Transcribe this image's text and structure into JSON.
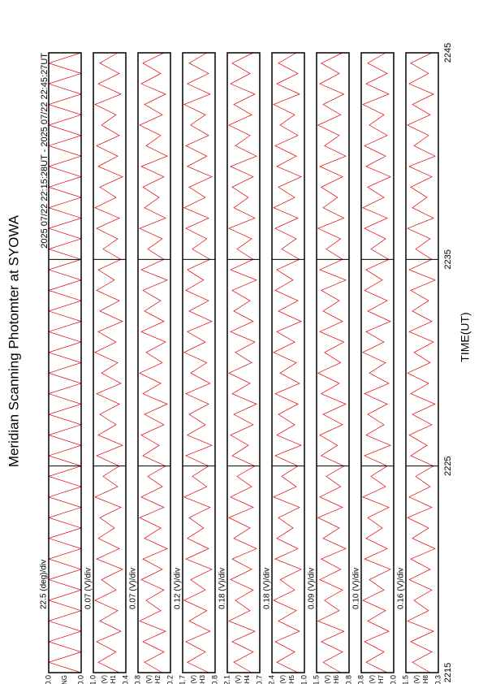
{
  "title": "Meridian Scanning Photomter at SYOWA",
  "time_range": "2025 07/22 22:15:28UT - 2025 07/22 22:45:27UT",
  "time_axis": {
    "label": "TIME(UT)",
    "xlim": [
      2215,
      2245
    ],
    "xticks": [
      2215,
      2225,
      2235,
      2245
    ],
    "x": [
      2215,
      2215.5,
      2216,
      2216.5,
      2217,
      2217.5,
      2218,
      2218.5,
      2219,
      2219.5,
      2220,
      2220.5,
      2221,
      2221.5,
      2222,
      2222.5,
      2223,
      2223.5,
      2224,
      2224.5,
      2225,
      2225.5,
      2226,
      2226.5,
      2227,
      2227.5,
      2228,
      2228.5,
      2229,
      2229.5,
      2230,
      2230.5,
      2231,
      2231.5,
      2232,
      2232.5,
      2233,
      2233.5,
      2234,
      2234.5,
      2235,
      2235.5,
      2236,
      2236.5,
      2237,
      2237.5,
      2238,
      2238.5,
      2239,
      2239.5,
      2240,
      2240.5,
      2241,
      2241.5,
      2242,
      2242.5,
      2243,
      2243.5,
      2244,
      2244.5,
      2245
    ]
  },
  "chart_data": [
    {
      "type": "line",
      "scale": "22.5 (deg)/div",
      "channel": "ANG",
      "ylim": [
        0,
        180
      ],
      "yticks": [
        {
          "value": 180,
          "label": "180.0"
        },
        {
          "value": 0,
          "label": "0.0"
        }
      ],
      "series": [
        {
          "color": "#e00000",
          "values": [
            0,
            180,
            0,
            180,
            0,
            180,
            0,
            180,
            0,
            180,
            0,
            180,
            0,
            180,
            0,
            180,
            0,
            180,
            0,
            180,
            0,
            180,
            0,
            180,
            0,
            180,
            0,
            180,
            0,
            180,
            0,
            180,
            0,
            180,
            0,
            180,
            0,
            180,
            0,
            180,
            0,
            180,
            0,
            180,
            0,
            180,
            0,
            180,
            0,
            180,
            0,
            180,
            0,
            180,
            0,
            180,
            0,
            180,
            0,
            180,
            0
          ]
        }
      ]
    },
    {
      "type": "line",
      "scale": "0.07 (V)/div",
      "unit": "(V)",
      "channel": "CH1",
      "ylim": [
        0.4,
        1.0
      ],
      "yticks": [
        {
          "value": 1,
          "label": "1.0"
        },
        0.4
      ],
      "series": [
        {
          "color": "#e00000",
          "values": [
            0.52,
            0.91,
            0.58,
            0.94,
            0.49,
            0.88,
            0.55,
            0.97,
            0.58,
            0.85,
            0.46,
            0.94,
            0.52,
            0.91,
            0.61,
            0.88,
            0.49,
            0.97,
            0.55,
            0.82,
            0.52,
            0.94,
            0.46,
            0.91,
            0.58,
            0.88,
            0.52,
            0.94,
            0.49,
            0.85,
            0.55,
            0.97,
            0.58,
            0.91,
            0.46,
            0.88,
            0.52,
            0.94,
            0.61,
            0.91,
            0.49,
            0.82,
            0.55,
            0.94,
            0.52,
            0.97,
            0.58,
            0.88,
            0.46,
            0.91,
            0.55,
            0.94,
            0.52,
            0.85,
            0.58,
            0.97,
            0.49,
            0.91,
            0.52,
            0.88,
            0.55
          ]
        }
      ]
    },
    {
      "type": "line",
      "scale": "0.07 (V)/div",
      "unit": "(V)",
      "channel": "CH2",
      "ylim": [
        0.2,
        0.8
      ],
      "yticks": [
        0.8,
        0.2
      ],
      "series": [
        {
          "color": "#e00000",
          "values": [
            0.35,
            0.68,
            0.32,
            0.71,
            0.29,
            0.77,
            0.38,
            0.65,
            0.32,
            0.74,
            0.35,
            0.71,
            0.26,
            0.68,
            0.38,
            0.77,
            0.32,
            0.74,
            0.35,
            0.62,
            0.29,
            0.71,
            0.41,
            0.74,
            0.32,
            0.68,
            0.26,
            0.71,
            0.38,
            0.77,
            0.35,
            0.65,
            0.29,
            0.74,
            0.32,
            0.68,
            0.38,
            0.71,
            0.26,
            0.74,
            0.32,
            0.62,
            0.35,
            0.77,
            0.29,
            0.68,
            0.41,
            0.71,
            0.32,
            0.74,
            0.26,
            0.65,
            0.38,
            0.77,
            0.35,
            0.68,
            0.29,
            0.74,
            0.38,
            0.71,
            0.32
          ]
        }
      ]
    },
    {
      "type": "line",
      "scale": "0.12 (V)/div",
      "unit": "(V)",
      "channel": "CH3",
      "ylim": [
        0.8,
        1.7
      ],
      "yticks": [
        1.7,
        0.8
      ],
      "series": [
        {
          "color": "#e00000",
          "values": [
            0.98,
            1.57,
            1.07,
            1.61,
            0.94,
            1.52,
            1.03,
            1.66,
            1.07,
            1.48,
            0.89,
            1.61,
            0.98,
            1.57,
            1.12,
            1.52,
            0.94,
            1.66,
            1.03,
            1.43,
            0.98,
            1.61,
            0.89,
            1.57,
            1.07,
            1.52,
            0.98,
            1.61,
            0.94,
            1.48,
            1.03,
            1.66,
            1.07,
            1.57,
            0.89,
            1.52,
            0.98,
            1.61,
            1.12,
            1.57,
            0.94,
            1.43,
            1.03,
            1.61,
            0.98,
            1.66,
            1.07,
            1.52,
            0.89,
            1.57,
            1.03,
            1.61,
            0.98,
            1.48,
            1.07,
            1.66,
            0.94,
            1.57,
            0.98,
            1.52,
            1.03
          ]
        }
      ]
    },
    {
      "type": "line",
      "scale": "0.18 (V)/div",
      "unit": "(V)",
      "channel": "CH4",
      "ylim": [
        0.7,
        2.1
      ],
      "yticks": [
        2.1,
        0.7
      ],
      "series": [
        {
          "color": "#e00000",
          "values": [
            1.05,
            1.82,
            0.98,
            1.89,
            0.91,
            2.03,
            1.12,
            1.75,
            0.98,
            1.96,
            1.05,
            1.89,
            0.84,
            1.82,
            1.12,
            2.03,
            0.98,
            1.96,
            1.05,
            1.68,
            0.91,
            1.89,
            1.19,
            1.96,
            0.98,
            1.82,
            0.84,
            1.89,
            1.12,
            2.03,
            1.05,
            1.75,
            0.91,
            1.96,
            0.98,
            1.82,
            1.12,
            1.89,
            0.84,
            1.96,
            0.98,
            1.68,
            1.05,
            2.03,
            0.91,
            1.82,
            1.19,
            1.89,
            0.98,
            1.96,
            0.84,
            1.75,
            1.12,
            2.03,
            1.05,
            1.82,
            0.91,
            1.96,
            1.12,
            1.89,
            0.98
          ]
        }
      ]
    },
    {
      "type": "line",
      "scale": "0.18 (V)/div",
      "unit": "(V)",
      "channel": "CH5",
      "ylim": [
        1.0,
        2.4
      ],
      "yticks": [
        2.4,
        {
          "value": 1,
          "label": "1.0"
        }
      ],
      "series": [
        {
          "color": "#e00000",
          "values": [
            1.28,
            2.19,
            1.42,
            2.26,
            1.21,
            2.12,
            1.35,
            2.33,
            1.42,
            2.05,
            1.14,
            2.26,
            1.28,
            2.19,
            1.49,
            2.12,
            1.21,
            2.33,
            1.35,
            1.98,
            1.28,
            2.26,
            1.14,
            2.19,
            1.42,
            2.12,
            1.28,
            2.26,
            1.21,
            2.05,
            1.35,
            2.33,
            1.42,
            2.19,
            1.14,
            2.12,
            1.28,
            2.26,
            1.49,
            2.19,
            1.21,
            1.98,
            1.35,
            2.26,
            1.28,
            2.33,
            1.42,
            2.12,
            1.14,
            2.19,
            1.35,
            2.26,
            1.28,
            2.05,
            1.42,
            2.33,
            1.21,
            2.19,
            1.28,
            2.12,
            1.35
          ]
        }
      ]
    },
    {
      "type": "line",
      "scale": "0.09 (V)/div",
      "unit": "(V)",
      "channel": "CH6",
      "ylim": [
        0.8,
        1.5
      ],
      "yticks": [
        1.5,
        0.8
      ],
      "series": [
        {
          "color": "#e00000",
          "values": [
            0.98,
            1.36,
            0.94,
            1.4,
            0.91,
            1.47,
            1.01,
            1.33,
            0.94,
            1.43,
            0.98,
            1.4,
            0.87,
            1.36,
            1.01,
            1.47,
            0.94,
            1.43,
            0.98,
            1.29,
            0.91,
            1.4,
            1.05,
            1.43,
            0.94,
            1.36,
            0.87,
            1.4,
            1.01,
            1.47,
            0.98,
            1.33,
            0.91,
            1.43,
            0.94,
            1.36,
            1.01,
            1.4,
            0.87,
            1.43,
            0.94,
            1.29,
            0.98,
            1.47,
            0.91,
            1.36,
            1.05,
            1.4,
            0.94,
            1.43,
            0.87,
            1.33,
            1.01,
            1.47,
            0.98,
            1.36,
            0.91,
            1.43,
            1.01,
            1.4,
            0.94
          ]
        }
      ]
    },
    {
      "type": "line",
      "scale": "0.10 (V)/div",
      "unit": "(V)",
      "channel": "CH7",
      "ylim": [
        0,
        0.8
      ],
      "yticks": [
        0.8,
        {
          "value": 0,
          "label": "-0.0"
        }
      ],
      "series": [
        {
          "color": "#e00000",
          "values": [
            0.16,
            0.68,
            0.24,
            0.72,
            0.12,
            0.64,
            0.2,
            0.76,
            0.24,
            0.6,
            0.08,
            0.72,
            0.16,
            0.68,
            0.28,
            0.64,
            0.12,
            0.76,
            0.2,
            0.56,
            0.16,
            0.72,
            0.08,
            0.68,
            0.24,
            0.64,
            0.16,
            0.72,
            0.12,
            0.6,
            0.2,
            0.76,
            0.24,
            0.68,
            0.08,
            0.64,
            0.16,
            0.72,
            0.28,
            0.68,
            0.12,
            0.56,
            0.2,
            0.72,
            0.16,
            0.76,
            0.24,
            0.64,
            0.08,
            0.68,
            0.2,
            0.72,
            0.16,
            0.6,
            0.24,
            0.76,
            0.12,
            0.68,
            0.16,
            0.64,
            0.2
          ]
        }
      ]
    },
    {
      "type": "line",
      "scale": "0.16 (V)/div",
      "unit": "(V)",
      "channel": "CH8",
      "ylim": [
        0.3,
        1.5
      ],
      "yticks": [
        1.5,
        0.3
      ],
      "series": [
        {
          "color": "#e00000",
          "values": [
            0.6,
            1.26,
            0.54,
            1.32,
            0.48,
            1.44,
            0.66,
            1.2,
            0.54,
            1.38,
            0.6,
            1.32,
            0.42,
            1.26,
            0.66,
            1.44,
            0.54,
            1.38,
            0.6,
            1.14,
            0.48,
            1.32,
            0.72,
            1.38,
            0.54,
            1.26,
            0.42,
            1.32,
            0.66,
            1.44,
            0.6,
            1.2,
            0.48,
            1.38,
            0.54,
            1.26,
            0.66,
            1.32,
            0.42,
            1.38,
            0.54,
            1.14,
            0.6,
            1.44,
            0.48,
            1.26,
            0.72,
            1.32,
            0.54,
            1.38,
            0.42,
            1.2,
            0.66,
            1.44,
            0.6,
            1.26,
            0.48,
            1.38,
            0.66,
            1.32,
            0.54
          ]
        }
      ]
    }
  ]
}
